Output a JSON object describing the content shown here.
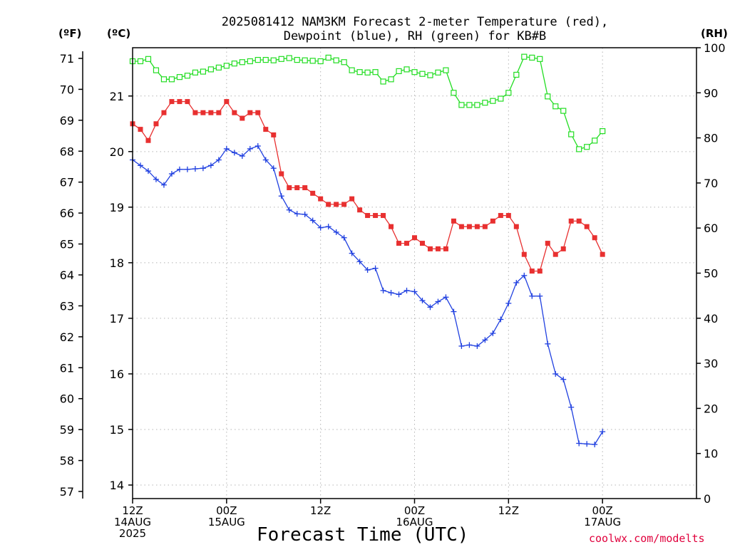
{
  "chart_data": {
    "type": "line",
    "title": "2025081412 NAM3KM Forecast 2-meter Temperature (red),\nDewpoint (blue), RH (green) for KB#B",
    "xlabel": "Forecast Time (UTC)",
    "credit": "coolwx.com/modelts",
    "axis_labels": {
      "fahrenheit": "(ºF)",
      "celsius": "(ºC)",
      "rh": "(RH)"
    },
    "x_range_hours": [
      0,
      36
    ],
    "x_ticks": [
      {
        "hour": 0,
        "label": "12Z\n14AUG\n2025"
      },
      {
        "hour": 6,
        "label": "00Z\n15AUG"
      },
      {
        "hour": 12,
        "label": "12Z"
      },
      {
        "hour": 18,
        "label": "00Z\n16AUG"
      },
      {
        "hour": 24,
        "label": "12Z"
      },
      {
        "hour": 30,
        "label": "00Z\n17AUG"
      }
    ],
    "y_left_f_range": [
      57,
      71
    ],
    "y_left_f_ticks": [
      57,
      58,
      59,
      60,
      61,
      62,
      63,
      64,
      65,
      66,
      67,
      68,
      69,
      70,
      71
    ],
    "y_left_c_range": [
      13.9,
      21.6
    ],
    "y_left_c_ticks": [
      14,
      15,
      16,
      17,
      18,
      19,
      20,
      21
    ],
    "y_right_rh_range": [
      0,
      100
    ],
    "y_right_rh_ticks": [
      0,
      10,
      20,
      30,
      40,
      50,
      60,
      70,
      80,
      90,
      100
    ],
    "grid": true,
    "series": [
      {
        "name": "Temperature",
        "axis": "celsius",
        "color": "#e83030",
        "marker": "filled-square",
        "x": [
          0,
          0.5,
          1,
          1.5,
          2,
          2.5,
          3,
          3.5,
          4,
          4.5,
          5,
          5.5,
          6,
          6.5,
          7,
          7.5,
          8,
          8.5,
          9,
          9.5,
          10,
          10.5,
          11,
          11.5,
          12,
          12.5,
          13,
          13.5,
          14,
          14.5,
          15,
          15.5,
          16,
          16.5,
          17,
          17.5,
          18,
          18.5,
          19,
          19.5,
          20,
          20.5,
          21,
          21.5,
          22,
          22.5,
          23,
          23.5,
          24,
          24.5,
          25,
          25.5,
          26,
          26.5,
          27,
          27.5,
          28,
          28.5,
          29,
          29.5,
          30
        ],
        "y": [
          20.5,
          20.4,
          20.2,
          20.5,
          20.7,
          20.9,
          20.9,
          20.9,
          20.7,
          20.7,
          20.7,
          20.7,
          20.9,
          20.7,
          20.6,
          20.7,
          20.7,
          20.4,
          20.3,
          19.6,
          19.35,
          19.35,
          19.35,
          19.25,
          19.15,
          19.05,
          19.05,
          19.05,
          19.15,
          18.95,
          18.85,
          18.85,
          18.85,
          18.65,
          18.35,
          18.35,
          18.45,
          18.35,
          18.25,
          18.25,
          18.25,
          18.75,
          18.65,
          18.65,
          18.65,
          18.65,
          18.75,
          18.85,
          18.85,
          18.65,
          18.15,
          17.85,
          17.85,
          18.35,
          18.15,
          18.25,
          18.75,
          18.75,
          18.65,
          18.45,
          18.15
        ]
      },
      {
        "name": "Dewpoint",
        "axis": "celsius",
        "color": "#2040e0",
        "marker": "plus",
        "x": [
          0,
          0.5,
          1,
          1.5,
          2,
          2.5,
          3,
          3.5,
          4,
          4.5,
          5,
          5.5,
          6,
          6.5,
          7,
          7.5,
          8,
          8.5,
          9,
          9.5,
          10,
          10.5,
          11,
          11.5,
          12,
          12.5,
          13,
          13.5,
          14,
          14.5,
          15,
          15.5,
          16,
          16.5,
          17,
          17.5,
          18,
          18.5,
          19,
          19.5,
          20,
          20.5,
          21,
          21.5,
          22,
          22.5,
          23,
          23.5,
          24,
          24.5,
          25,
          25.5,
          26,
          26.5,
          27,
          27.5,
          28,
          28.5,
          29,
          29.5,
          30
        ],
        "y": [
          19.85,
          19.75,
          19.65,
          19.5,
          19.4,
          19.6,
          19.68,
          19.68,
          19.69,
          19.7,
          19.75,
          19.85,
          20.05,
          19.98,
          19.92,
          20.05,
          20.1,
          19.85,
          19.7,
          19.2,
          18.95,
          18.88,
          18.87,
          18.76,
          18.63,
          18.65,
          18.55,
          18.45,
          18.17,
          18.02,
          17.87,
          17.9,
          17.5,
          17.46,
          17.43,
          17.5,
          17.48,
          17.32,
          17.2,
          17.3,
          17.38,
          17.12,
          16.5,
          16.52,
          16.5,
          16.61,
          16.73,
          16.98,
          17.27,
          17.64,
          17.77,
          17.4,
          17.4,
          16.54,
          16.0,
          15.9,
          15.4,
          14.75,
          14.74,
          14.73,
          14.96
        ]
      },
      {
        "name": "RH",
        "axis": "rh",
        "color": "#22dd22",
        "marker": "open-square",
        "x": [
          0,
          0.5,
          1,
          1.5,
          2,
          2.5,
          3,
          3.5,
          4,
          4.5,
          5,
          5.5,
          6,
          6.5,
          7,
          7.5,
          8,
          8.5,
          9,
          9.5,
          10,
          10.5,
          11,
          11.5,
          12,
          12.5,
          13,
          13.5,
          14,
          14.5,
          15,
          15.5,
          16,
          16.5,
          17,
          17.5,
          18,
          18.5,
          19,
          19.5,
          20,
          20.5,
          21,
          21.5,
          22,
          22.5,
          23,
          23.5,
          24,
          24.5,
          25,
          25.5,
          26,
          26.5,
          27,
          27.5,
          28,
          28.5,
          29,
          29.5,
          30
        ],
        "y": [
          97,
          97,
          97.5,
          95,
          93,
          93,
          93.5,
          93.8,
          94.5,
          94.7,
          95.2,
          95.6,
          96,
          96.5,
          96.8,
          97,
          97.3,
          97.3,
          97.2,
          97.5,
          97.7,
          97.3,
          97.2,
          97.1,
          97,
          97.8,
          97.2,
          96.8,
          95,
          94.6,
          94.5,
          94.6,
          92.5,
          93,
          94.8,
          95.2,
          94.6,
          94.2,
          93.9,
          94.5,
          95,
          90,
          87.3,
          87.3,
          87.3,
          87.8,
          88.2,
          88.7,
          90,
          94,
          98,
          97.8,
          97.5,
          89.2,
          87,
          86,
          80.8,
          77.5,
          78,
          79.4,
          81.5
        ]
      }
    ]
  }
}
